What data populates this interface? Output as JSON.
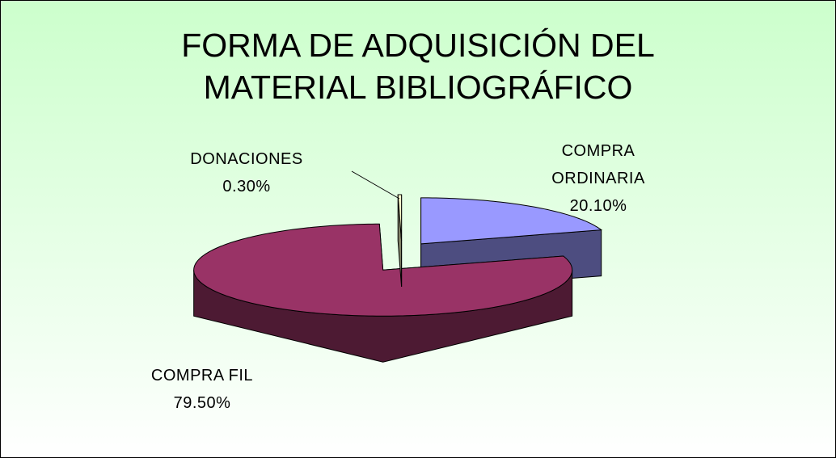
{
  "chart_data": {
    "type": "pie",
    "title": "FORMA DE ADQUISICIÓN DEL MATERIAL BIBLIOGRÁFICO",
    "categories": [
      "COMPRA ORDINARIA",
      "COMPRA FIL",
      "DONACIONES"
    ],
    "values": [
      20.1,
      79.5,
      0.3
    ],
    "value_labels": [
      "20.10%",
      "79.50%",
      "0.30%"
    ],
    "colors": [
      "#9999ff",
      "#993366",
      "#ffffcc"
    ]
  }
}
